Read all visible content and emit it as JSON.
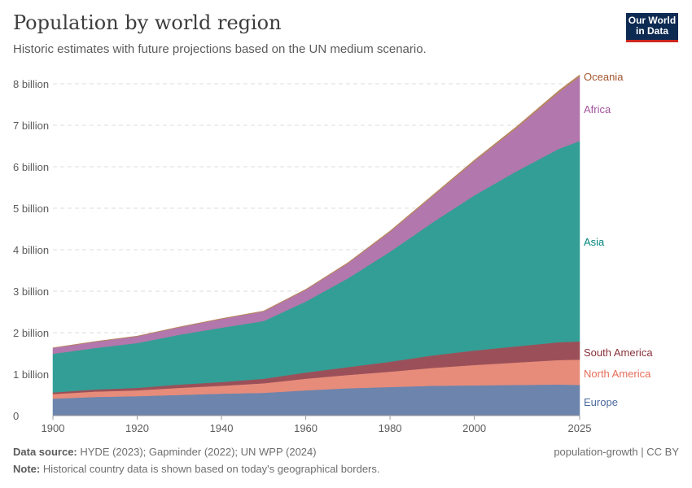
{
  "header": {
    "title": "Population by world region",
    "subtitle": "Historic estimates with future projections based on the UN medium scenario.",
    "logo_line1": "Our World",
    "logo_line2": "in Data"
  },
  "footer": {
    "source_label": "Data source:",
    "source": "HYDE (2023); Gapminder (2022); UN WPP (2024)",
    "note_label": "Note:",
    "note": "Historical country data is shown based on today's geographical borders.",
    "license": "population-growth | CC BY"
  },
  "chart_data": {
    "type": "area",
    "stacked": true,
    "title": "Population by world region",
    "xlabel": "",
    "ylabel": "",
    "xlim": [
      1900,
      2025
    ],
    "ylim": [
      0,
      8
    ],
    "y_unit": "billion",
    "x_ticks": [
      1900,
      1920,
      1940,
      1960,
      1980,
      2000,
      2025
    ],
    "y_ticks": [
      {
        "v": 0,
        "label": "0"
      },
      {
        "v": 1,
        "label": "1 billion"
      },
      {
        "v": 2,
        "label": "2 billion"
      },
      {
        "v": 3,
        "label": "3 billion"
      },
      {
        "v": 4,
        "label": "4 billion"
      },
      {
        "v": 5,
        "label": "5 billion"
      },
      {
        "v": 6,
        "label": "6 billion"
      },
      {
        "v": 7,
        "label": "7 billion"
      },
      {
        "v": 8,
        "label": "8 billion"
      }
    ],
    "grid": true,
    "legend": "right-inline",
    "x": [
      1900,
      1910,
      1920,
      1930,
      1940,
      1950,
      1960,
      1970,
      1980,
      1990,
      2000,
      2010,
      2020,
      2025
    ],
    "series": [
      {
        "name": "Europe",
        "color": "#6d84ad",
        "label_color": "#4c6a9c",
        "values": [
          0.41,
          0.45,
          0.47,
          0.5,
          0.53,
          0.55,
          0.61,
          0.66,
          0.69,
          0.72,
          0.73,
          0.74,
          0.75,
          0.74
        ]
      },
      {
        "name": "North America",
        "color": "#e78c7a",
        "label_color": "#e56e5a",
        "values": [
          0.11,
          0.13,
          0.14,
          0.17,
          0.19,
          0.23,
          0.28,
          0.32,
          0.37,
          0.43,
          0.49,
          0.54,
          0.59,
          0.61
        ]
      },
      {
        "name": "South America",
        "color": "#9b5059",
        "label_color": "#883039",
        "values": [
          0.04,
          0.05,
          0.06,
          0.08,
          0.09,
          0.11,
          0.15,
          0.19,
          0.24,
          0.3,
          0.35,
          0.39,
          0.43,
          0.44
        ]
      },
      {
        "name": "Asia",
        "color": "#339e95",
        "label_color": "#00847e",
        "values": [
          0.93,
          1.0,
          1.08,
          1.2,
          1.31,
          1.39,
          1.71,
          2.14,
          2.65,
          3.2,
          3.74,
          4.22,
          4.66,
          4.83
        ]
      },
      {
        "name": "Africa",
        "color": "#b277ac",
        "label_color": "#a2559c",
        "values": [
          0.14,
          0.15,
          0.16,
          0.18,
          0.21,
          0.23,
          0.28,
          0.36,
          0.48,
          0.63,
          0.82,
          1.04,
          1.36,
          1.55
        ]
      },
      {
        "name": "Oceania",
        "color": "#b8865e",
        "label_color": "#a2552d",
        "values": [
          0.006,
          0.008,
          0.009,
          0.01,
          0.011,
          0.013,
          0.016,
          0.019,
          0.023,
          0.027,
          0.031,
          0.037,
          0.043,
          0.046
        ]
      }
    ]
  }
}
